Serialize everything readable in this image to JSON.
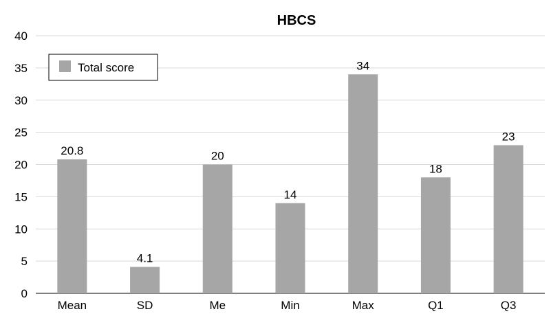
{
  "chart_data": {
    "type": "bar",
    "title": "HBCS",
    "xlabel": "",
    "ylabel": "",
    "categories": [
      "Mean",
      "SD",
      "Me",
      "Min",
      "Max",
      "Q1",
      "Q3"
    ],
    "series": [
      {
        "name": "Total score",
        "values": [
          20.8,
          4.1,
          20,
          14,
          34,
          18,
          23
        ],
        "labels": [
          "20.8",
          "4.1",
          "20",
          "14",
          "34",
          "18",
          "23"
        ],
        "color": "#a6a6a6"
      }
    ],
    "ylim": [
      0,
      40
    ],
    "yticks": [
      0,
      5,
      10,
      15,
      20,
      25,
      30,
      35,
      40
    ],
    "grid": true,
    "legend_position": "top-left"
  }
}
